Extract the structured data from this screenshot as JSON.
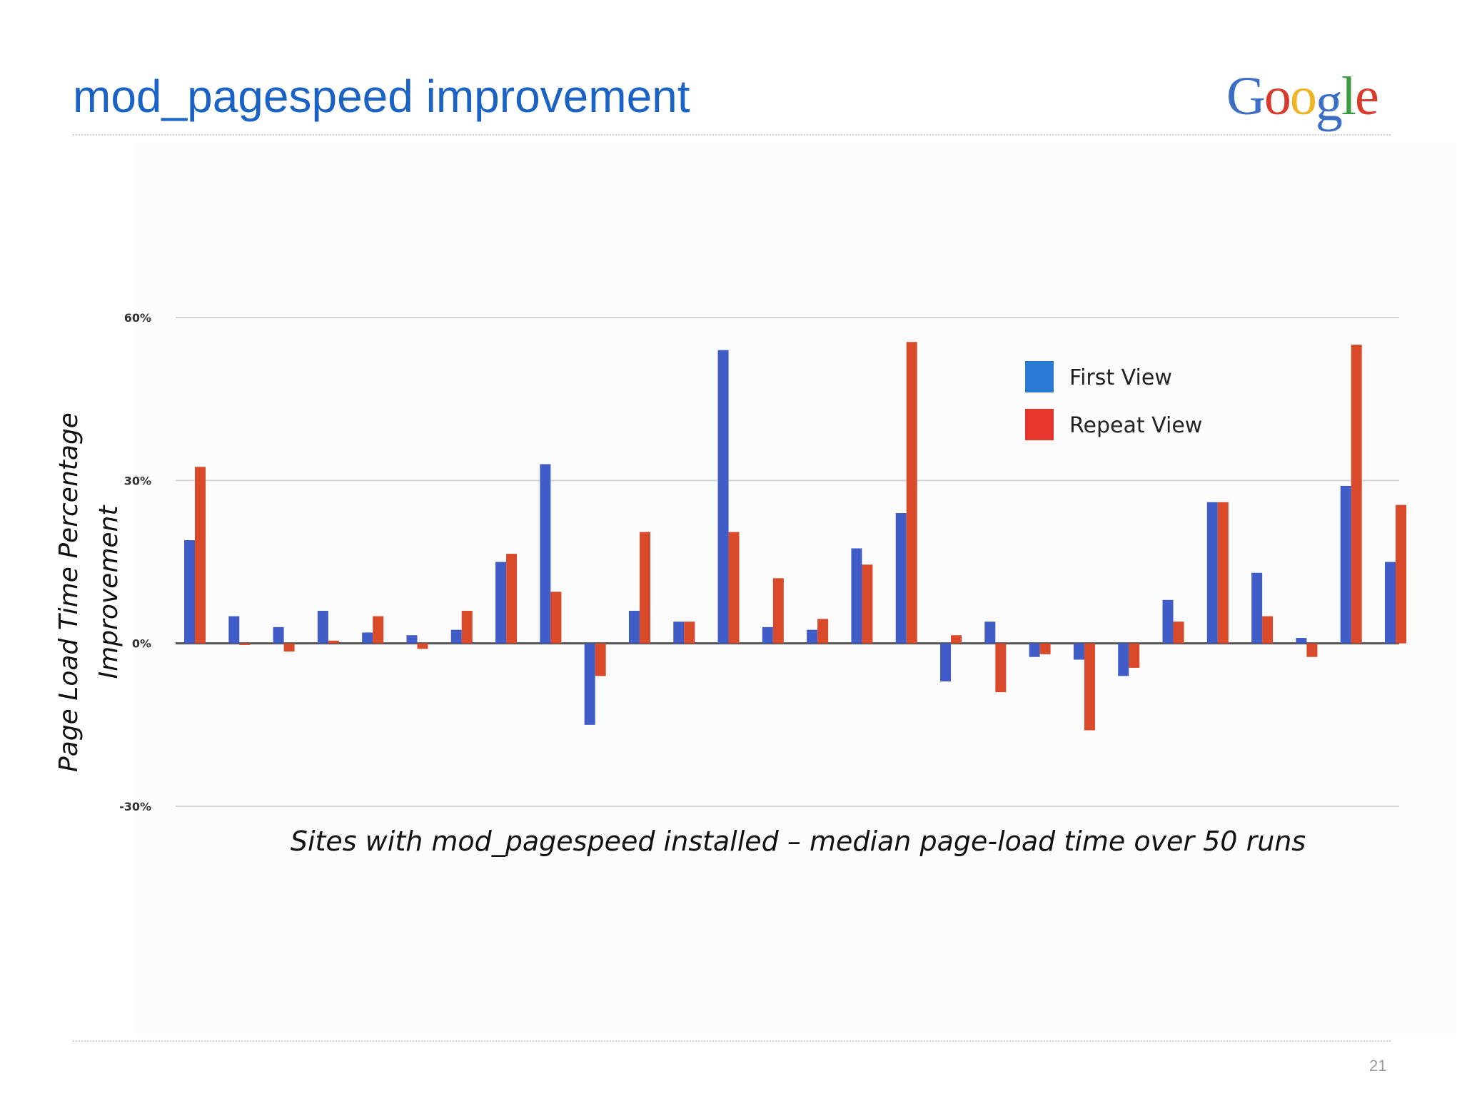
{
  "slide": {
    "title": "mod_pagespeed improvement",
    "logo_letters": [
      {
        "char": "G",
        "color": "#3b6fc6"
      },
      {
        "char": "o",
        "color": "#d83b2c"
      },
      {
        "char": "o",
        "color": "#f0b323"
      },
      {
        "char": "g",
        "color": "#3b6fc6"
      },
      {
        "char": "l",
        "color": "#3a9b3f"
      },
      {
        "char": "e",
        "color": "#d83b2c"
      }
    ],
    "page_number": "21"
  },
  "chart_data": {
    "type": "bar",
    "title": "",
    "xlabel": "Sites with mod_pagespeed installed – median page-load time over 50 runs",
    "ylabel_lines": [
      "Page Load Time Percentage",
      "Improvement"
    ],
    "ylim": [
      -30,
      60
    ],
    "yticks": [
      {
        "value": 60,
        "label": "60%"
      },
      {
        "value": 30,
        "label": "30%"
      },
      {
        "value": 0,
        "label": "0%"
      },
      {
        "value": -30,
        "label": "-30%"
      }
    ],
    "grid": true,
    "legend_position": "top-right",
    "colors": {
      "First View": "#3f5cc7",
      "Repeat View": "#d94a2b",
      "legend_first": "#2a7bd6",
      "legend_repeat": "#e8352b"
    },
    "series": [
      {
        "name": "First View",
        "values": [
          19,
          5,
          3,
          6,
          2,
          1.5,
          2.5,
          15,
          33,
          -15,
          6,
          4,
          54,
          3,
          2.5,
          17.5,
          24,
          -7,
          4,
          -2.5,
          -3,
          -6,
          8,
          26,
          13,
          1,
          29,
          15
        ]
      },
      {
        "name": "Repeat View",
        "values": [
          32.5,
          -0.3,
          -1.5,
          0.5,
          5,
          -1,
          6,
          16.5,
          9.5,
          -6,
          20.5,
          4,
          20.5,
          12,
          4.5,
          14.5,
          55.5,
          1.5,
          -9,
          -2,
          -16,
          -4.5,
          4,
          26,
          5,
          -2.5,
          55,
          25.5
        ]
      }
    ]
  }
}
